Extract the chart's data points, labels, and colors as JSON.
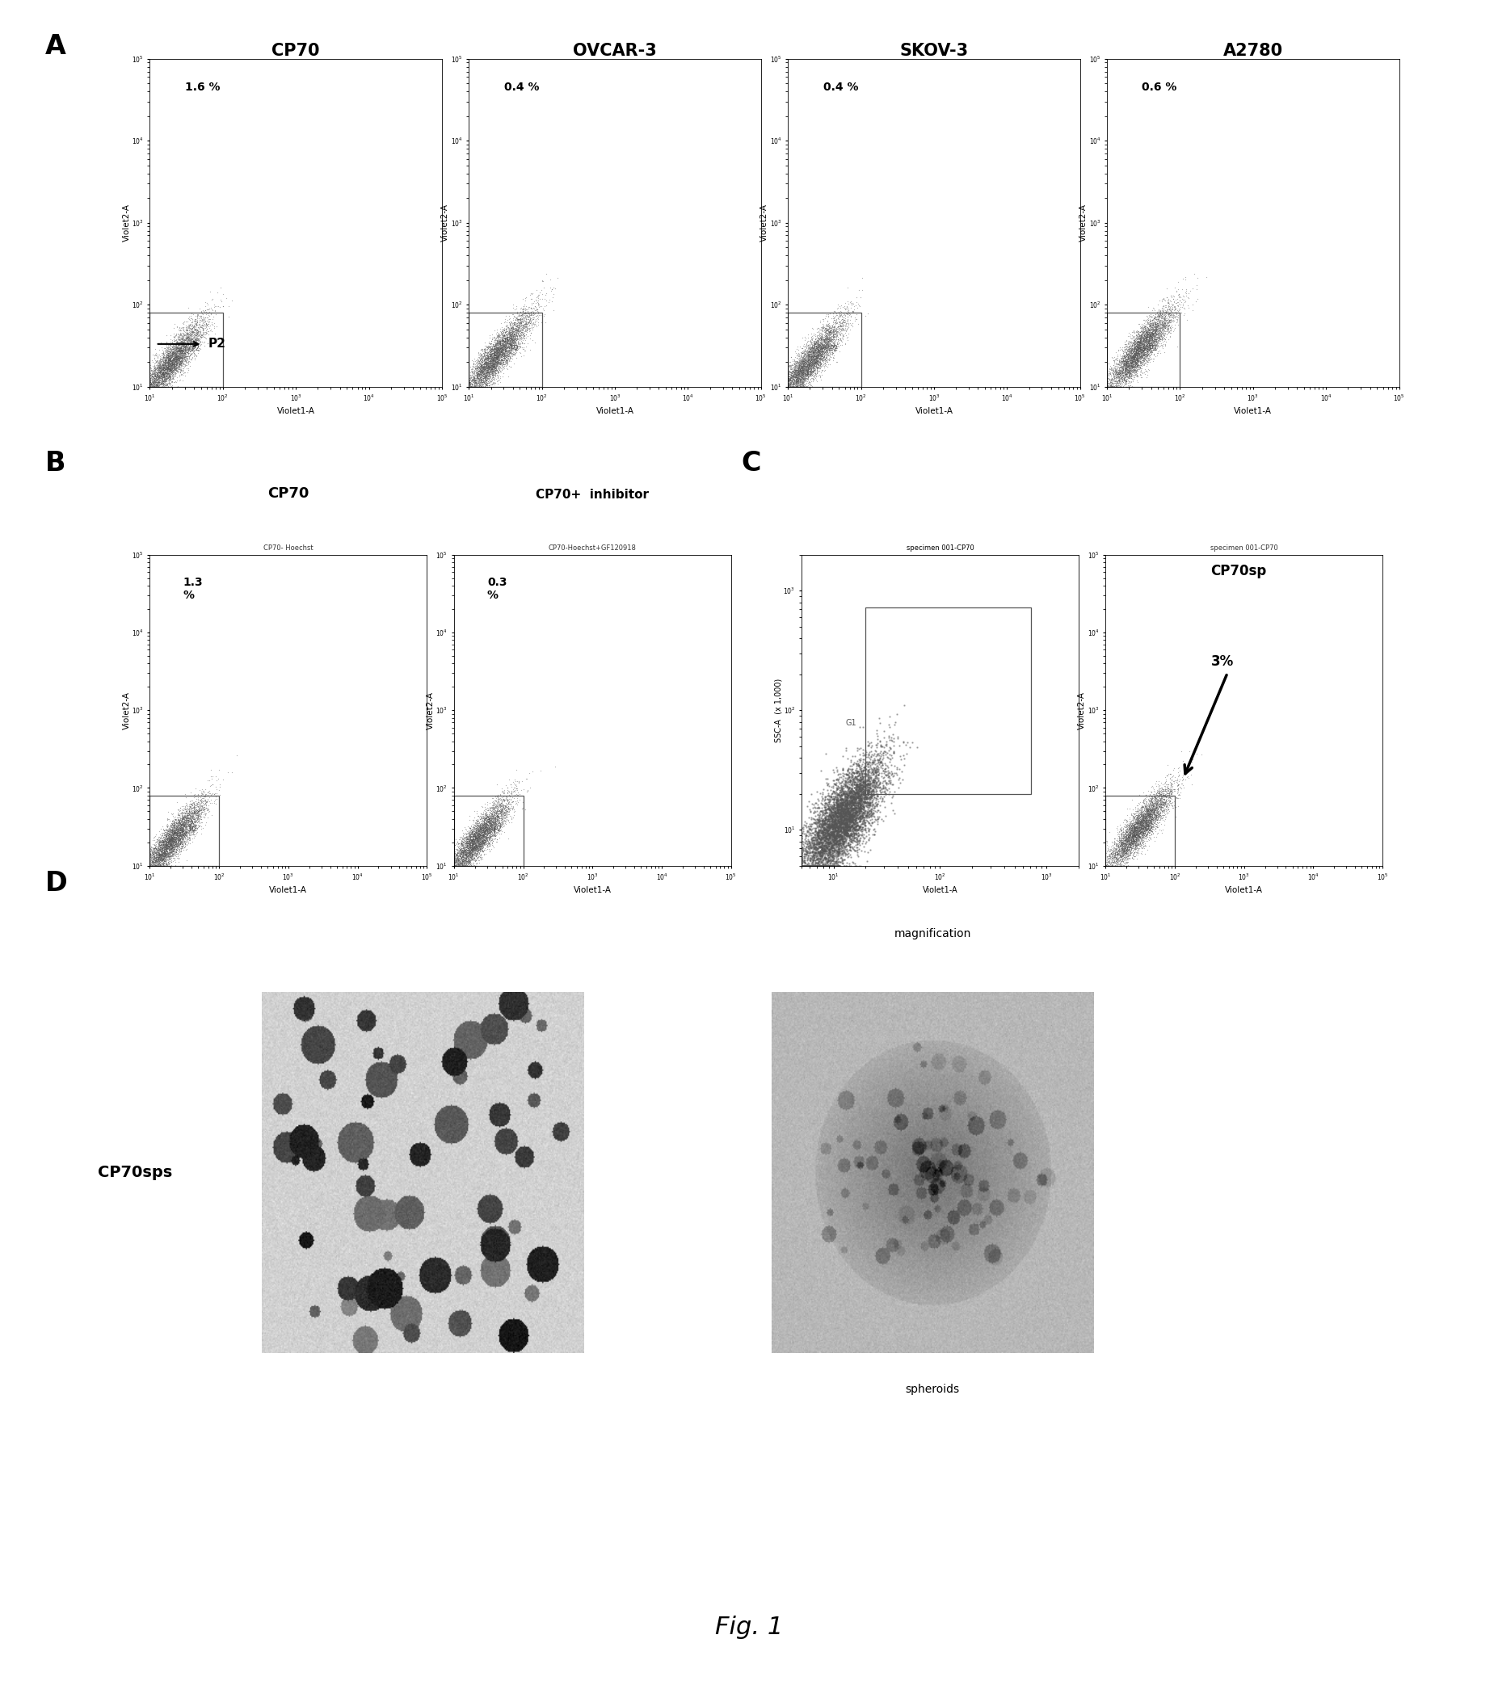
{
  "fig_title": "Fig. 1",
  "panel_A_label": "A",
  "panel_B_label": "B",
  "panel_C_label": "C",
  "panel_D_label": "D",
  "panel_A_titles": [
    "CP70",
    "OVCAR-3",
    "SKOV-3",
    "A2780"
  ],
  "panel_A_percentages": [
    "1.6 %",
    "0.4 %",
    "0.4 %",
    "0.6 %"
  ],
  "panel_B_titles_main": [
    "CP70",
    "CP70+  inhibitor"
  ],
  "panel_B_subtitles": [
    "CP70- Hoechst",
    "CP70-Hoechst+GF120918"
  ],
  "panel_B_pct": [
    "1.3\n%",
    "0.3\n%"
  ],
  "panel_C_subtitles": [
    "specimen 001-CP70",
    "specimen 001-CP70"
  ],
  "panel_D_label_text": "CP70sps",
  "panel_D_mag_label": "magnification",
  "panel_D_spheroids_label": "spheroids",
  "bg_color": "#ffffff",
  "scatter_color": "#777777",
  "xlabel_A": "Violet1-A",
  "ylabel_A": "Violet2-A",
  "cp70sp_text": "CP70sp",
  "cp70sp_pct": "3%"
}
